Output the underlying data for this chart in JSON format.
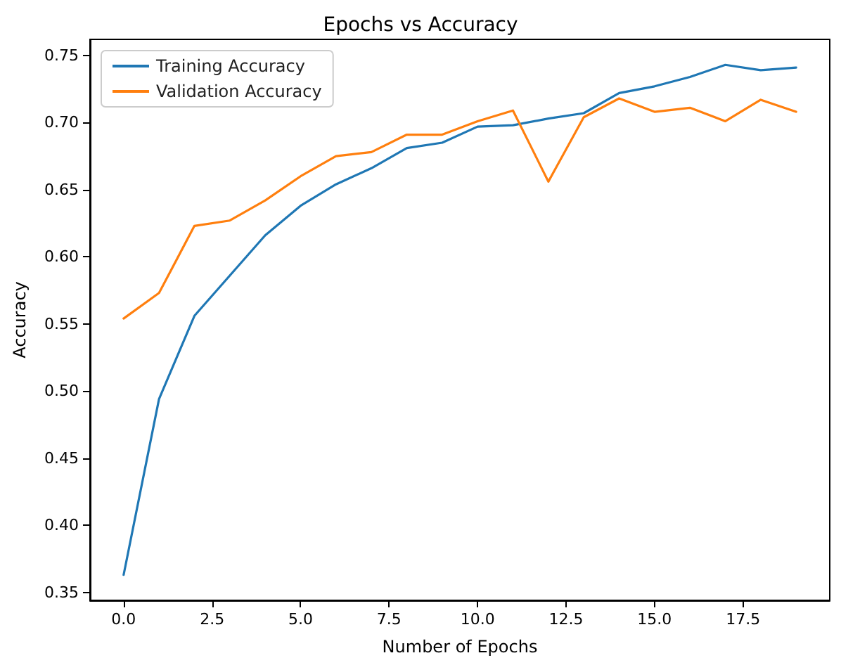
{
  "chart_data": {
    "type": "line",
    "title": "Epochs vs Accuracy",
    "xlabel": "Number of Epochs",
    "ylabel": "Accuracy",
    "x": [
      0,
      1,
      2,
      3,
      4,
      5,
      6,
      7,
      8,
      9,
      10,
      11,
      12,
      13,
      14,
      15,
      16,
      17,
      18,
      19
    ],
    "series": [
      {
        "name": "Training Accuracy",
        "color": "#1f77b4",
        "values": [
          0.363,
          0.494,
          0.556,
          0.586,
          0.616,
          0.638,
          0.654,
          0.666,
          0.681,
          0.685,
          0.697,
          0.698,
          0.703,
          0.707,
          0.722,
          0.727,
          0.734,
          0.743,
          0.739,
          0.741
        ]
      },
      {
        "name": "Validation Accuracy",
        "color": "#ff7f0e",
        "values": [
          0.554,
          0.573,
          0.623,
          0.627,
          0.642,
          0.66,
          0.675,
          0.678,
          0.691,
          0.691,
          0.701,
          0.709,
          0.656,
          0.704,
          0.718,
          0.708,
          0.711,
          0.701,
          0.717,
          0.708
        ]
      }
    ],
    "xlim": [
      -0.95,
      19.95
    ],
    "xticks": [
      {
        "value": 0,
        "label": "0.0"
      },
      {
        "value": 2.5,
        "label": "2.5"
      },
      {
        "value": 5,
        "label": "5.0"
      },
      {
        "value": 7.5,
        "label": "7.5"
      },
      {
        "value": 10,
        "label": "10.0"
      },
      {
        "value": 12.5,
        "label": "12.5"
      },
      {
        "value": 15,
        "label": "15.0"
      },
      {
        "value": 17.5,
        "label": "17.5"
      }
    ],
    "ylim": [
      0.344,
      0.762
    ],
    "yticks": [
      {
        "value": 0.35,
        "label": "0.35"
      },
      {
        "value": 0.4,
        "label": "0.40"
      },
      {
        "value": 0.45,
        "label": "0.45"
      },
      {
        "value": 0.5,
        "label": "0.50"
      },
      {
        "value": 0.55,
        "label": "0.55"
      },
      {
        "value": 0.6,
        "label": "0.60"
      },
      {
        "value": 0.65,
        "label": "0.65"
      },
      {
        "value": 0.7,
        "label": "0.70"
      },
      {
        "value": 0.75,
        "label": "0.75"
      }
    ],
    "grid": false,
    "legend": "top left",
    "marker": "none",
    "line_style": "solid"
  }
}
